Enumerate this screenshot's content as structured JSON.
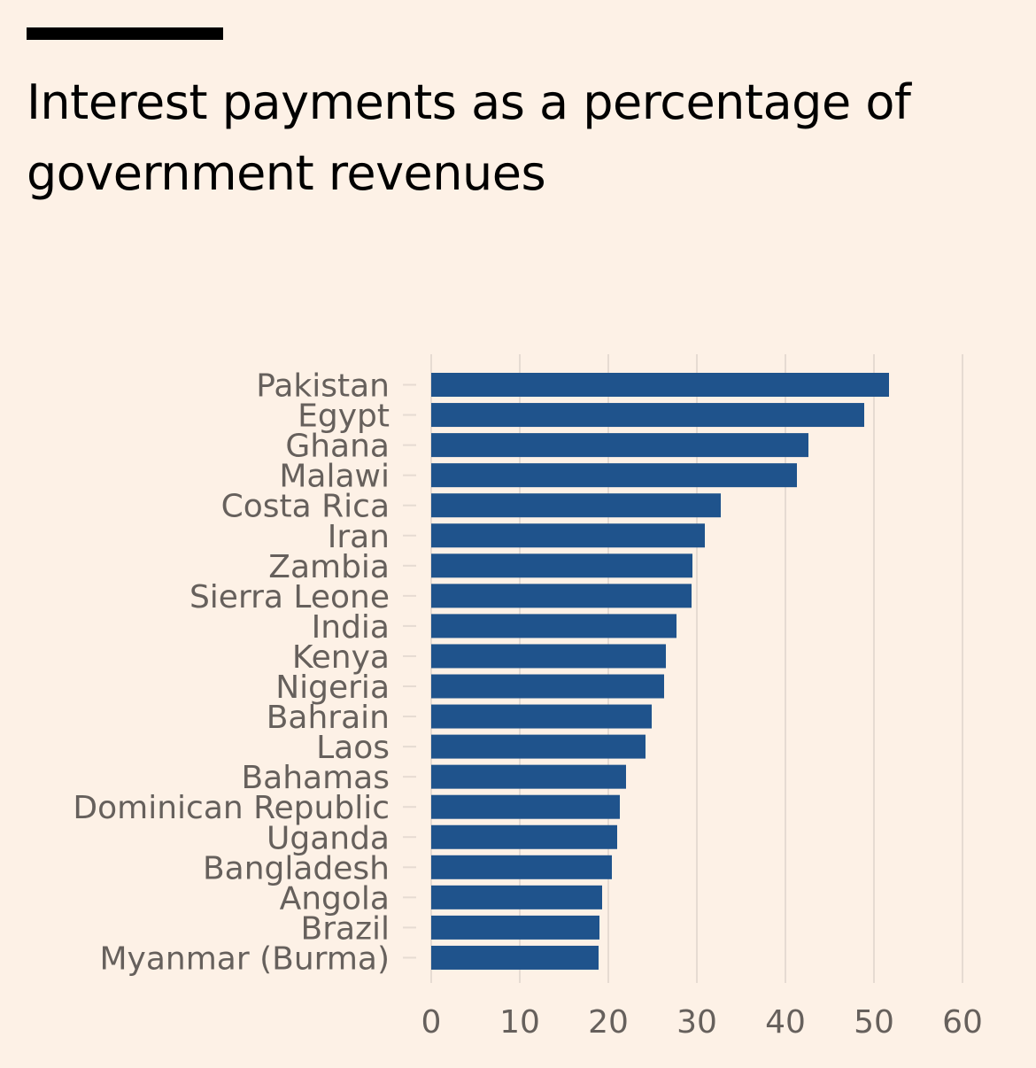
{
  "title": "Interest payments as a percentage of government revenues",
  "colors": {
    "background": "#fdf1e6",
    "bar": "#1f538c",
    "text": "#66605c",
    "grid": "#e6dbd2"
  },
  "chart_data": {
    "type": "bar",
    "orientation": "horizontal",
    "title": "Interest payments as a percentage of government revenues",
    "categories": [
      "Pakistan",
      "Egypt",
      "Ghana",
      "Malawi",
      "Costa Rica",
      "Iran",
      "Zambia",
      "Sierra Leone",
      "India",
      "Kenya",
      "Nigeria",
      "Bahrain",
      "Laos",
      "Bahamas",
      "Dominican Republic",
      "Uganda",
      "Bangladesh",
      "Angola",
      "Brazil",
      "Myanmar (Burma)"
    ],
    "values": [
      51.7,
      48.9,
      42.6,
      41.3,
      32.7,
      30.9,
      29.5,
      29.4,
      27.7,
      26.5,
      26.3,
      24.9,
      24.2,
      22.0,
      21.3,
      21.0,
      20.4,
      19.3,
      19.0,
      18.9
    ],
    "xlim": [
      0,
      60
    ],
    "xticks": [
      "0",
      "10",
      "20",
      "30",
      "40",
      "50",
      "60"
    ],
    "xlabel": "",
    "ylabel": "",
    "grid": true,
    "legend": "none"
  }
}
